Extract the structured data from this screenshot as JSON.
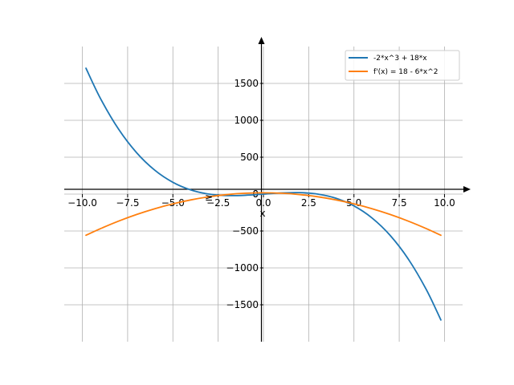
{
  "chart_data": {
    "type": "line",
    "title": "",
    "xlabel": "x",
    "ylabel": "",
    "xlim": [
      -11,
      11
    ],
    "ylim": [
      -2000,
      2000
    ],
    "grid": true,
    "legend_position": "top-right",
    "x_ticks": [
      -10,
      -7.5,
      -5,
      -2.5,
      0,
      2.5,
      5,
      7.5,
      10
    ],
    "x_tick_labels": [
      "−10.0",
      "−7.5",
      "−5.0",
      "−2.5",
      "0.0",
      "2.5",
      "5.0",
      "7.5",
      "10.0"
    ],
    "y_ticks": [
      -1500,
      -1000,
      -500,
      0,
      500,
      1000,
      1500
    ],
    "y_tick_labels": [
      "−1500",
      "−1000",
      "−500",
      "0",
      "500",
      "1000",
      "1500"
    ],
    "annotation": "≥",
    "series": [
      {
        "name": "-2*x^3 + 18*x",
        "color": "#1f77b4",
        "x": [
          -9.8,
          -9,
          -8,
          -7,
          -6,
          -5,
          -4,
          -3,
          -2,
          -1,
          0,
          1,
          2,
          3,
          4,
          5,
          6,
          7,
          8,
          9,
          9.8
        ],
        "values": [
          1705.9,
          1296,
          880,
          560,
          324,
          160,
          56,
          0,
          -20,
          -16,
          0,
          16,
          20,
          0,
          -56,
          -160,
          -324,
          -560,
          -880,
          -1296,
          -1705.9
        ]
      },
      {
        "name": "f'(x) = 18 - 6*x^2",
        "color": "#ff7f0e",
        "x": [
          -9.8,
          -9,
          -8,
          -7,
          -6,
          -5,
          -4,
          -3,
          -2,
          -1,
          0,
          1,
          2,
          3,
          4,
          5,
          6,
          7,
          8,
          9,
          9.8
        ],
        "values": [
          -558.2,
          -468,
          -366,
          -276,
          -198,
          -132,
          -78,
          -36,
          -6,
          12,
          18,
          12,
          -6,
          -36,
          -78,
          -132,
          -198,
          -276,
          -366,
          -468,
          -558.2
        ]
      }
    ]
  }
}
